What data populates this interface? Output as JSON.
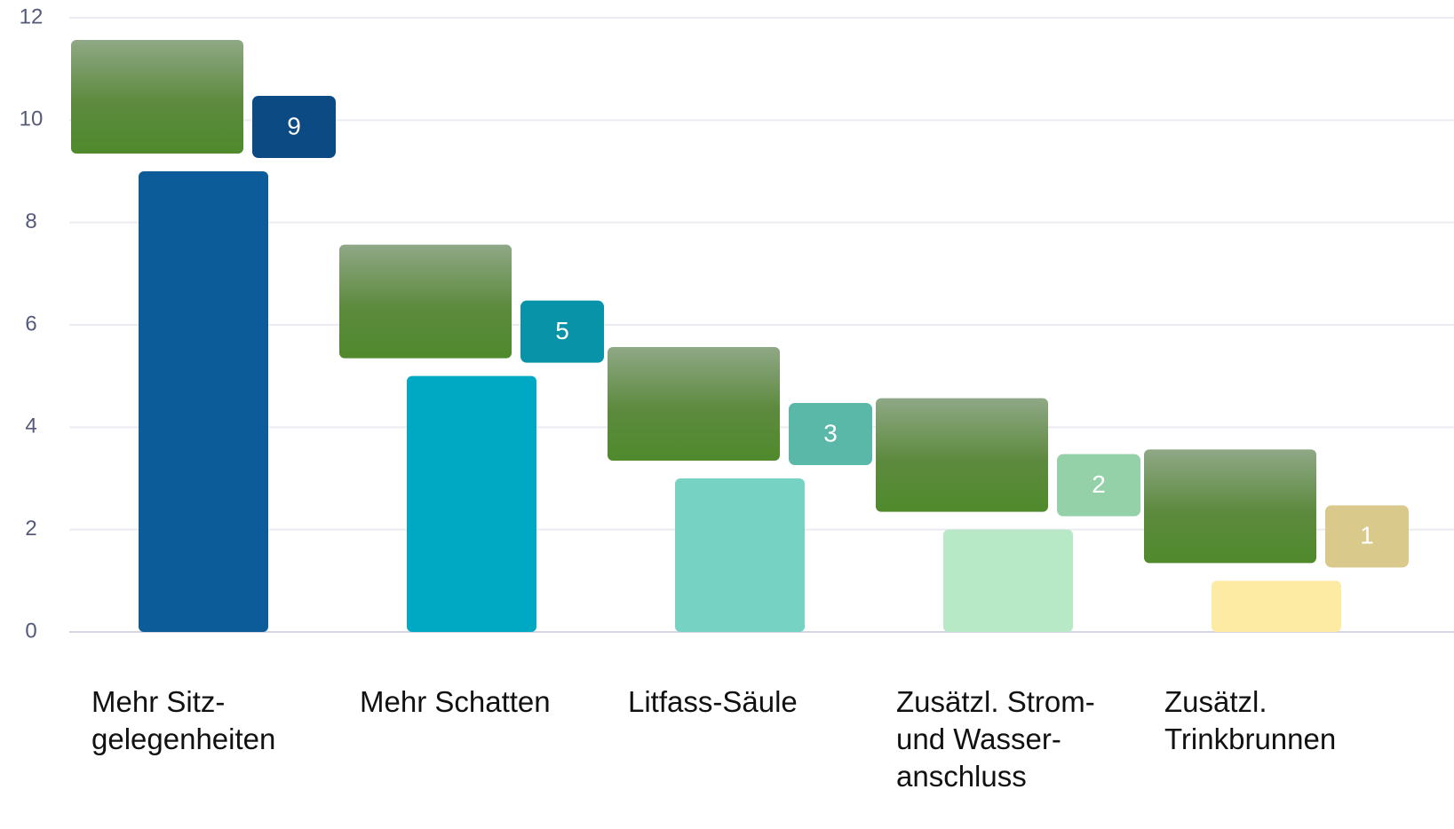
{
  "chart_data": {
    "type": "bar",
    "categories": [
      "Mehr Sitz-\ngelegenheiten",
      "Mehr Schatten",
      "Litfass-Säule",
      "Zusätzl. Strom-\nund Wasser-\nanschluss",
      "Zusätzl.\nTrinkbrunnen"
    ],
    "values": [
      9,
      5,
      3,
      2,
      1
    ],
    "colors": [
      "#0b5c98",
      "#00a9c3",
      "#76d3c4",
      "#b7e9c6",
      "#fdeaa3"
    ],
    "label_colors": [
      "#0b4a82",
      "#0893a8",
      "#5ab8a8",
      "#94d0a8",
      "#d9c98a"
    ],
    "ylim": [
      0,
      12
    ],
    "yticks": [
      0,
      2,
      4,
      6,
      8,
      10,
      12
    ],
    "grid": true
  }
}
